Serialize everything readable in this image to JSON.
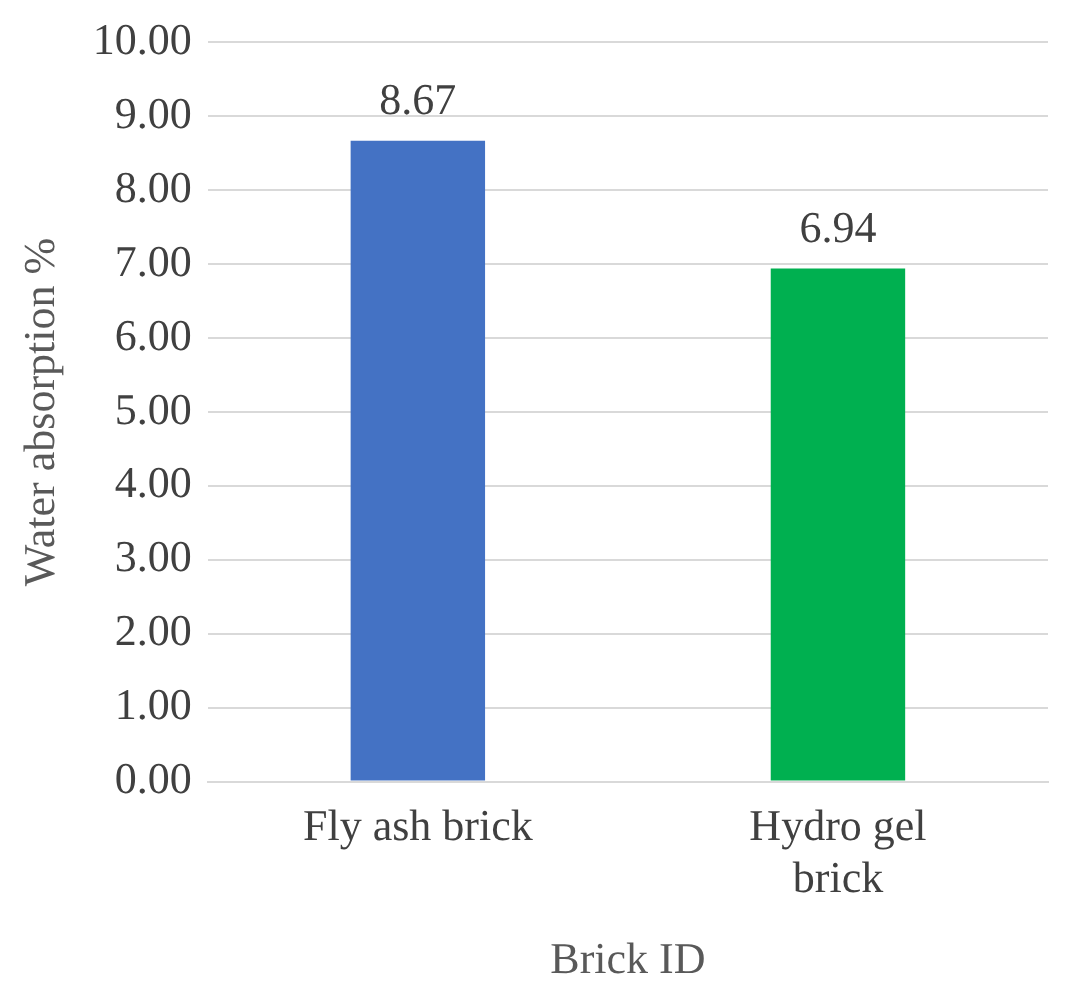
{
  "chart_data": {
    "type": "bar",
    "xlabel": "Brick ID",
    "ylabel": "Water absorption %",
    "categories": [
      "Fly ash brick",
      "Hydro gel brick"
    ],
    "values": [
      8.67,
      6.94
    ],
    "colors": [
      "#4472c4",
      "#00b050"
    ],
    "ylim": [
      0,
      10
    ],
    "yticks": [
      {
        "value": 0,
        "label": "0.00"
      },
      {
        "value": 1,
        "label": "1.00"
      },
      {
        "value": 2,
        "label": "2.00"
      },
      {
        "value": 3,
        "label": "3.00"
      },
      {
        "value": 4,
        "label": "4.00"
      },
      {
        "value": 5,
        "label": "5.00"
      },
      {
        "value": 6,
        "label": "6.00"
      },
      {
        "value": 7,
        "label": "7.00"
      },
      {
        "value": 8,
        "label": "8.00"
      },
      {
        "value": 9,
        "label": "9.00"
      },
      {
        "value": 10,
        "label": "10.00"
      }
    ],
    "grid": "y",
    "data_labels": true
  }
}
